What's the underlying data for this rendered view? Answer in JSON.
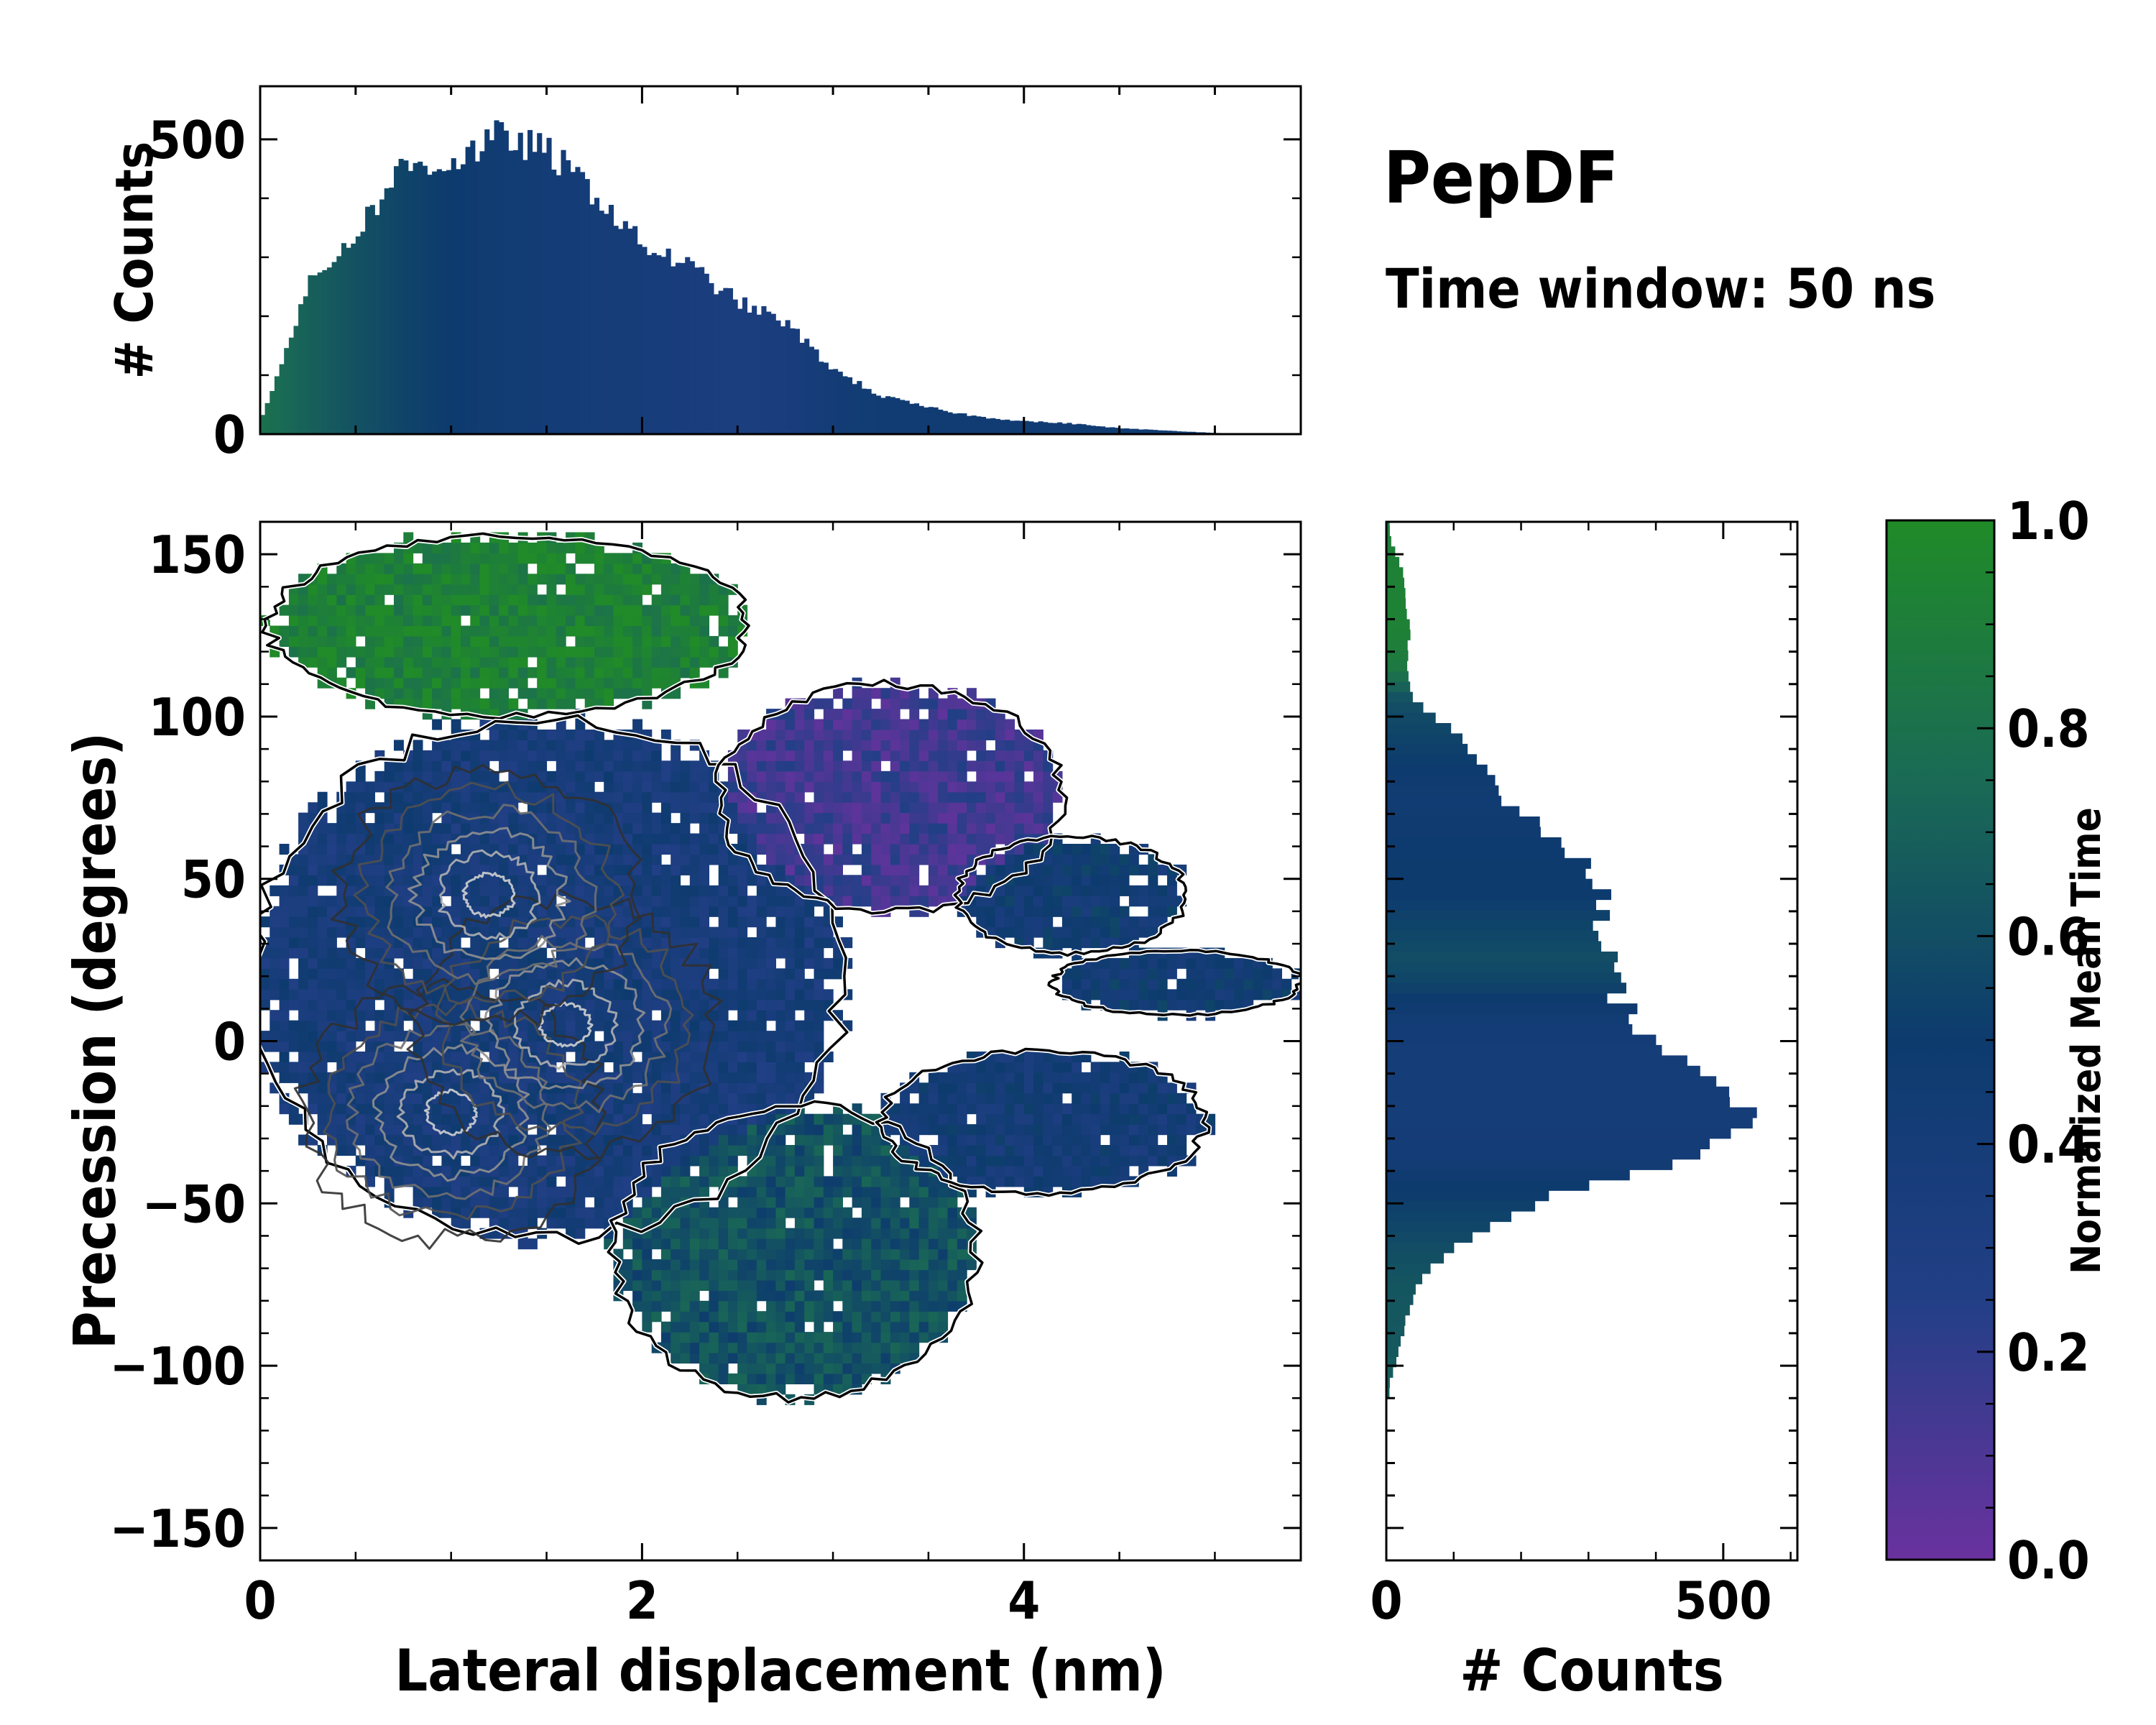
{
  "colors": {
    "colormap": [
      "#6a329f",
      "#223f86",
      "#0d3b6e",
      "#1a6a55",
      "#208b28"
    ],
    "outline": "#000000",
    "white_outline": "#ffffff"
  },
  "header": {
    "title": "PepDF",
    "subtitle": "Time window: 50 ns"
  },
  "chart_data": [
    {
      "type": "heatmap",
      "name": "joint-distribution",
      "xlabel": "Lateral displacement (nm)",
      "ylabel": "Precession (degrees)",
      "xlim": [
        0,
        5.45
      ],
      "ylim": [
        -160,
        160
      ],
      "xticks": [
        0,
        2,
        4
      ],
      "xtick_labels": [
        "0",
        "2",
        "4"
      ],
      "yticks": [
        150,
        100,
        50,
        0,
        -50,
        -100,
        -150
      ],
      "ytick_labels": [
        "150",
        "100",
        "50",
        "0",
        "−50",
        "−100",
        "−150"
      ],
      "color_label": "Normalized Mean Time",
      "contours": true,
      "regions": [
        {
          "name": "upper-lobe",
          "cx": 1.3,
          "cy": 128,
          "rx": 1.25,
          "ry": 28,
          "t": 0.92
        },
        {
          "name": "main-body",
          "cx": 1.5,
          "cy": 20,
          "rx": 1.55,
          "ry": 80,
          "t": 0.38
        },
        {
          "name": "upper-right-band",
          "cx": 3.3,
          "cy": 75,
          "rx": 0.9,
          "ry": 35,
          "t": 0.15
        },
        {
          "name": "lower-lobe",
          "cx": 2.8,
          "cy": -65,
          "rx": 0.95,
          "ry": 45,
          "t": 0.62
        },
        {
          "name": "right-lower-band",
          "cx": 4.1,
          "cy": -25,
          "rx": 0.85,
          "ry": 22,
          "t": 0.42
        },
        {
          "name": "tail-branch-1",
          "cx": 4.25,
          "cy": 45,
          "rx": 0.6,
          "ry": 18,
          "t": 0.45
        },
        {
          "name": "tail-branch-2",
          "cx": 4.8,
          "cy": 18,
          "rx": 0.65,
          "ry": 10,
          "t": 0.45
        }
      ]
    },
    {
      "type": "bar",
      "name": "top-histogram",
      "ylabel": "# Counts",
      "xlim": [
        0,
        5.45
      ],
      "ylim": [
        0,
        590
      ],
      "yticks": [
        0,
        500
      ],
      "ytick_labels": [
        "0",
        "500"
      ],
      "bin_centers": [
        0.0,
        0.25,
        0.5,
        0.75,
        1.0,
        1.25,
        1.5,
        1.75,
        2.0,
        2.25,
        2.5,
        2.75,
        3.0,
        3.25,
        3.5,
        3.75,
        4.0,
        4.25,
        4.5,
        4.75,
        5.0,
        5.25
      ],
      "values": [
        20,
        250,
        340,
        455,
        460,
        505,
        480,
        410,
        320,
        285,
        225,
        190,
        110,
        65,
        45,
        30,
        22,
        18,
        10,
        6,
        2,
        1
      ],
      "mean_time": [
        0.8,
        0.7,
        0.62,
        0.55,
        0.5,
        0.45,
        0.42,
        0.4,
        0.38,
        0.35,
        0.33,
        0.35,
        0.42,
        0.45,
        0.45,
        0.45,
        0.45,
        0.45,
        0.45,
        0.45,
        0.45,
        0.45
      ]
    },
    {
      "type": "bar",
      "orientation": "horizontal",
      "name": "right-histogram",
      "xlabel": "# Counts",
      "xlim": [
        0,
        610
      ],
      "xticks": [
        0,
        500
      ],
      "xtick_labels": [
        "0",
        "500"
      ],
      "ylim": [
        -160,
        160
      ],
      "bin_centers": [
        -105,
        -95,
        -85,
        -75,
        -65,
        -55,
        -45,
        -35,
        -25,
        -15,
        -5,
        5,
        15,
        25,
        35,
        45,
        55,
        65,
        75,
        85,
        95,
        105,
        115,
        125,
        135,
        145,
        155
      ],
      "values": [
        5,
        20,
        30,
        45,
        90,
        170,
        280,
        470,
        530,
        520,
        430,
        380,
        340,
        330,
        320,
        320,
        300,
        230,
        175,
        140,
        100,
        40,
        30,
        35,
        30,
        25,
        5
      ],
      "mean_time": [
        0.68,
        0.66,
        0.65,
        0.64,
        0.6,
        0.55,
        0.5,
        0.42,
        0.4,
        0.4,
        0.4,
        0.42,
        0.52,
        0.6,
        0.55,
        0.5,
        0.5,
        0.48,
        0.45,
        0.5,
        0.55,
        0.6,
        0.85,
        0.92,
        0.93,
        0.92,
        0.9
      ]
    },
    {
      "type": "colorbar",
      "name": "colorbar",
      "label": "Normalized Mean Time",
      "range": [
        0,
        1
      ],
      "ticks": [
        0.0,
        0.2,
        0.4,
        0.6,
        0.8,
        1.0
      ],
      "tick_labels": [
        "0.0",
        "0.2",
        "0.4",
        "0.6",
        "0.8",
        "1.0"
      ]
    }
  ]
}
